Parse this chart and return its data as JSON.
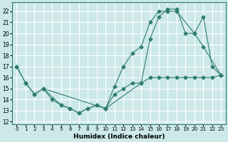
{
  "xlabel": "Humidex (Indice chaleur)",
  "xlim": [
    -0.5,
    23.5
  ],
  "ylim": [
    11.8,
    22.8
  ],
  "yticks": [
    12,
    13,
    14,
    15,
    16,
    17,
    18,
    19,
    20,
    21,
    22
  ],
  "xticks": [
    0,
    1,
    2,
    3,
    4,
    5,
    6,
    7,
    8,
    9,
    10,
    11,
    12,
    13,
    14,
    15,
    16,
    17,
    18,
    19,
    20,
    21,
    22,
    23
  ],
  "background_color": "#cce8e8",
  "grid_color": "#b0d8d8",
  "line_color": "#2e7d6e",
  "line1_x": [
    0,
    1,
    2,
    3,
    4,
    5,
    6,
    7,
    8,
    9,
    10,
    11,
    12,
    13,
    14,
    15,
    16,
    17,
    18,
    19,
    20,
    21,
    22,
    23
  ],
  "line1_y": [
    17.0,
    15.5,
    14.5,
    15.0,
    14.0,
    13.5,
    13.2,
    12.8,
    13.2,
    13.5,
    13.2,
    14.5,
    15.0,
    15.5,
    15.5,
    16.0,
    16.0,
    16.0,
    16.0,
    16.0,
    16.0,
    16.0,
    16.0,
    16.2
  ],
  "line2_x": [
    0,
    1,
    2,
    3,
    5,
    6,
    7,
    8,
    9,
    10,
    11,
    12,
    13,
    14,
    15,
    16,
    17,
    18,
    20,
    21,
    22,
    23
  ],
  "line2_y": [
    17.0,
    15.5,
    14.5,
    15.0,
    13.5,
    13.2,
    12.8,
    13.2,
    13.5,
    13.2,
    15.2,
    17.0,
    18.2,
    18.8,
    21.0,
    22.0,
    22.0,
    22.0,
    20.0,
    21.5,
    17.0,
    16.2
  ],
  "line3_x": [
    3,
    10,
    14,
    15,
    16,
    17,
    18,
    19,
    20,
    21,
    23
  ],
  "line3_y": [
    15.0,
    13.2,
    15.5,
    19.5,
    21.5,
    22.2,
    22.2,
    20.0,
    20.0,
    18.8,
    16.2
  ]
}
